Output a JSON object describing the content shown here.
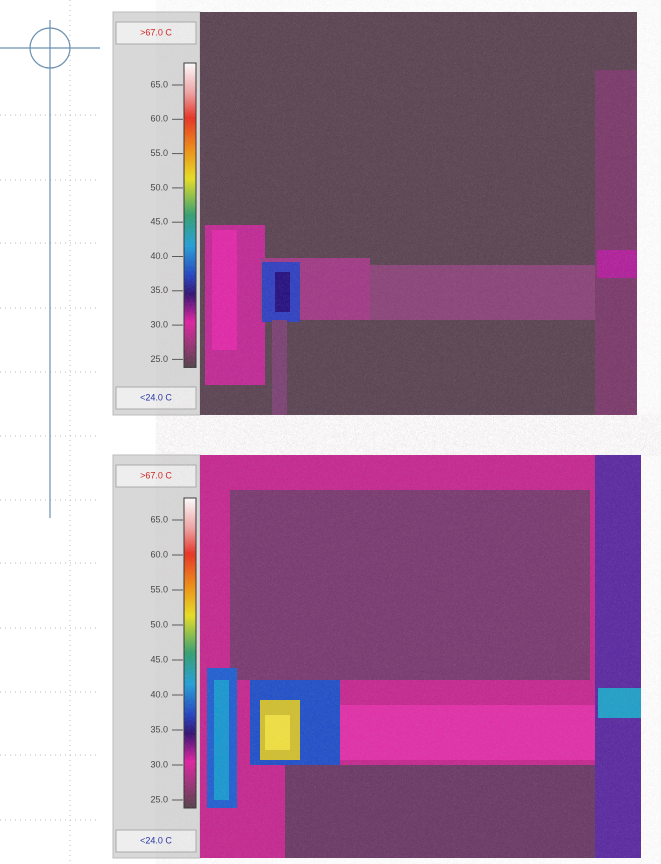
{
  "panels": [
    {
      "max_label": ">67.0 C",
      "min_label": "<24.0 C",
      "scale": [
        "65.0",
        "60.0",
        "55.0",
        "50.0",
        "45.0",
        "40.0",
        "35.0",
        "30.0",
        "25.0"
      ]
    },
    {
      "max_label": ">67.0 C",
      "min_label": "<24.0 C",
      "scale": [
        "65.0",
        "60.0",
        "55.0",
        "50.0",
        "45.0",
        "40.0",
        "35.0",
        "30.0",
        "25.0"
      ]
    }
  ]
}
